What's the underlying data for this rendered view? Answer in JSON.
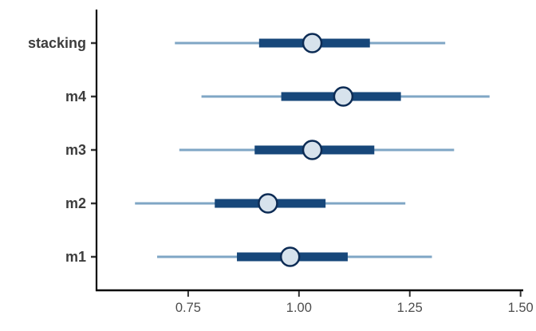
{
  "chart_data": {
    "type": "scatter",
    "subtype": "horizontal-interval-forest-plot",
    "title": "",
    "xlabel": "",
    "ylabel": "",
    "grid": false,
    "legend": false,
    "categories": [
      "stacking",
      "m4",
      "m3",
      "m2",
      "m1"
    ],
    "series": [
      {
        "name": "stacking",
        "outer_interval": [
          0.72,
          1.33
        ],
        "inner_interval": [
          0.91,
          1.16
        ],
        "point_estimate": 1.03
      },
      {
        "name": "m4",
        "outer_interval": [
          0.78,
          1.43
        ],
        "inner_interval": [
          0.96,
          1.23
        ],
        "point_estimate": 1.1
      },
      {
        "name": "m3",
        "outer_interval": [
          0.73,
          1.35
        ],
        "inner_interval": [
          0.9,
          1.17
        ],
        "point_estimate": 1.03
      },
      {
        "name": "m2",
        "outer_interval": [
          0.63,
          1.24
        ],
        "inner_interval": [
          0.81,
          1.06
        ],
        "point_estimate": 0.93
      },
      {
        "name": "m1",
        "outer_interval": [
          0.68,
          1.3
        ],
        "inner_interval": [
          0.86,
          1.11
        ],
        "point_estimate": 0.98
      }
    ],
    "x_axis": {
      "ticks": [
        0.75,
        1.0,
        1.25,
        1.5
      ],
      "tick_labels": [
        "0.75",
        "1.00",
        "1.25",
        "1.50"
      ],
      "range": [
        0.545,
        1.515
      ]
    },
    "colors": {
      "outer_line": "#7fa6c5",
      "inner_bar": "#17477a",
      "point_fill": "#d7e2ec",
      "point_stroke": "#0d2c55",
      "axis": "#000000",
      "tick": "#333333",
      "tick_label": "#4d4d4d",
      "category_label": "#3d3d3d",
      "background": "#ffffff"
    }
  }
}
